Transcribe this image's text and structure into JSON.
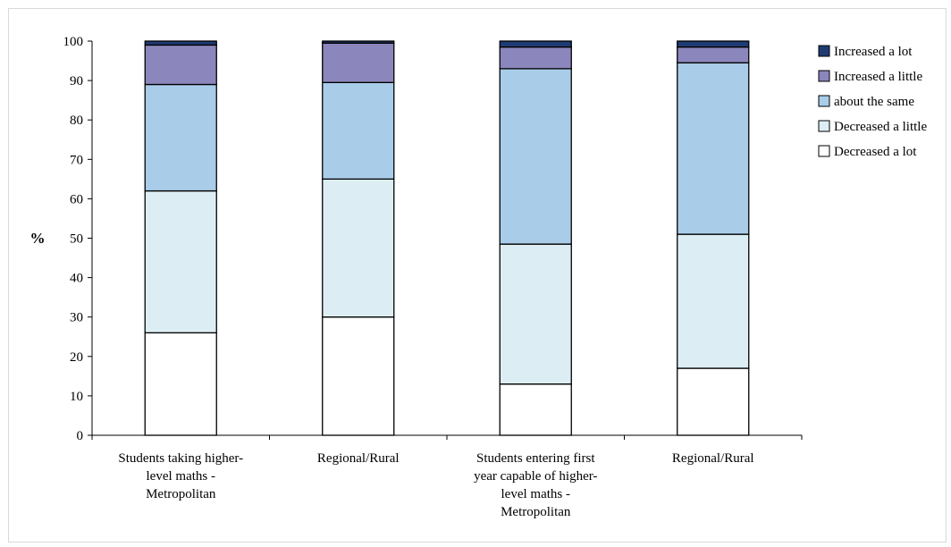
{
  "chart_data": {
    "type": "bar",
    "stacked": true,
    "ylabel": "%",
    "ylim": [
      0,
      100
    ],
    "yticks": [
      0,
      10,
      20,
      30,
      40,
      50,
      60,
      70,
      80,
      90,
      100
    ],
    "grid": false,
    "legend_position": "right",
    "categories": [
      [
        "Students taking higher-",
        "level maths -",
        "Metropolitan"
      ],
      [
        "Regional/Rural"
      ],
      [
        "Students entering first",
        "year capable of higher-",
        "level maths -",
        "Metropolitan"
      ],
      [
        "Regional/Rural"
      ]
    ],
    "series": [
      {
        "name": "Decreased a lot",
        "color": "#ffffff",
        "values": [
          26,
          30,
          13,
          17
        ]
      },
      {
        "name": "Decreased a little",
        "color": "#dceef3",
        "values": [
          36,
          35,
          35.5,
          34
        ]
      },
      {
        "name": "about the same",
        "color": "#a9cce9",
        "values": [
          27,
          24.5,
          44.5,
          43.5
        ]
      },
      {
        "name": "Increased a little",
        "color": "#8b86bb",
        "values": [
          10,
          10,
          5.5,
          4
        ]
      },
      {
        "name": "Increased a lot",
        "color": "#1f3b73",
        "values": [
          1,
          0.5,
          1.5,
          1.5
        ]
      }
    ],
    "legend_order": [
      "Increased a lot",
      "Increased a little",
      "about the same",
      "Decreased a little",
      "Decreased a lot"
    ]
  }
}
